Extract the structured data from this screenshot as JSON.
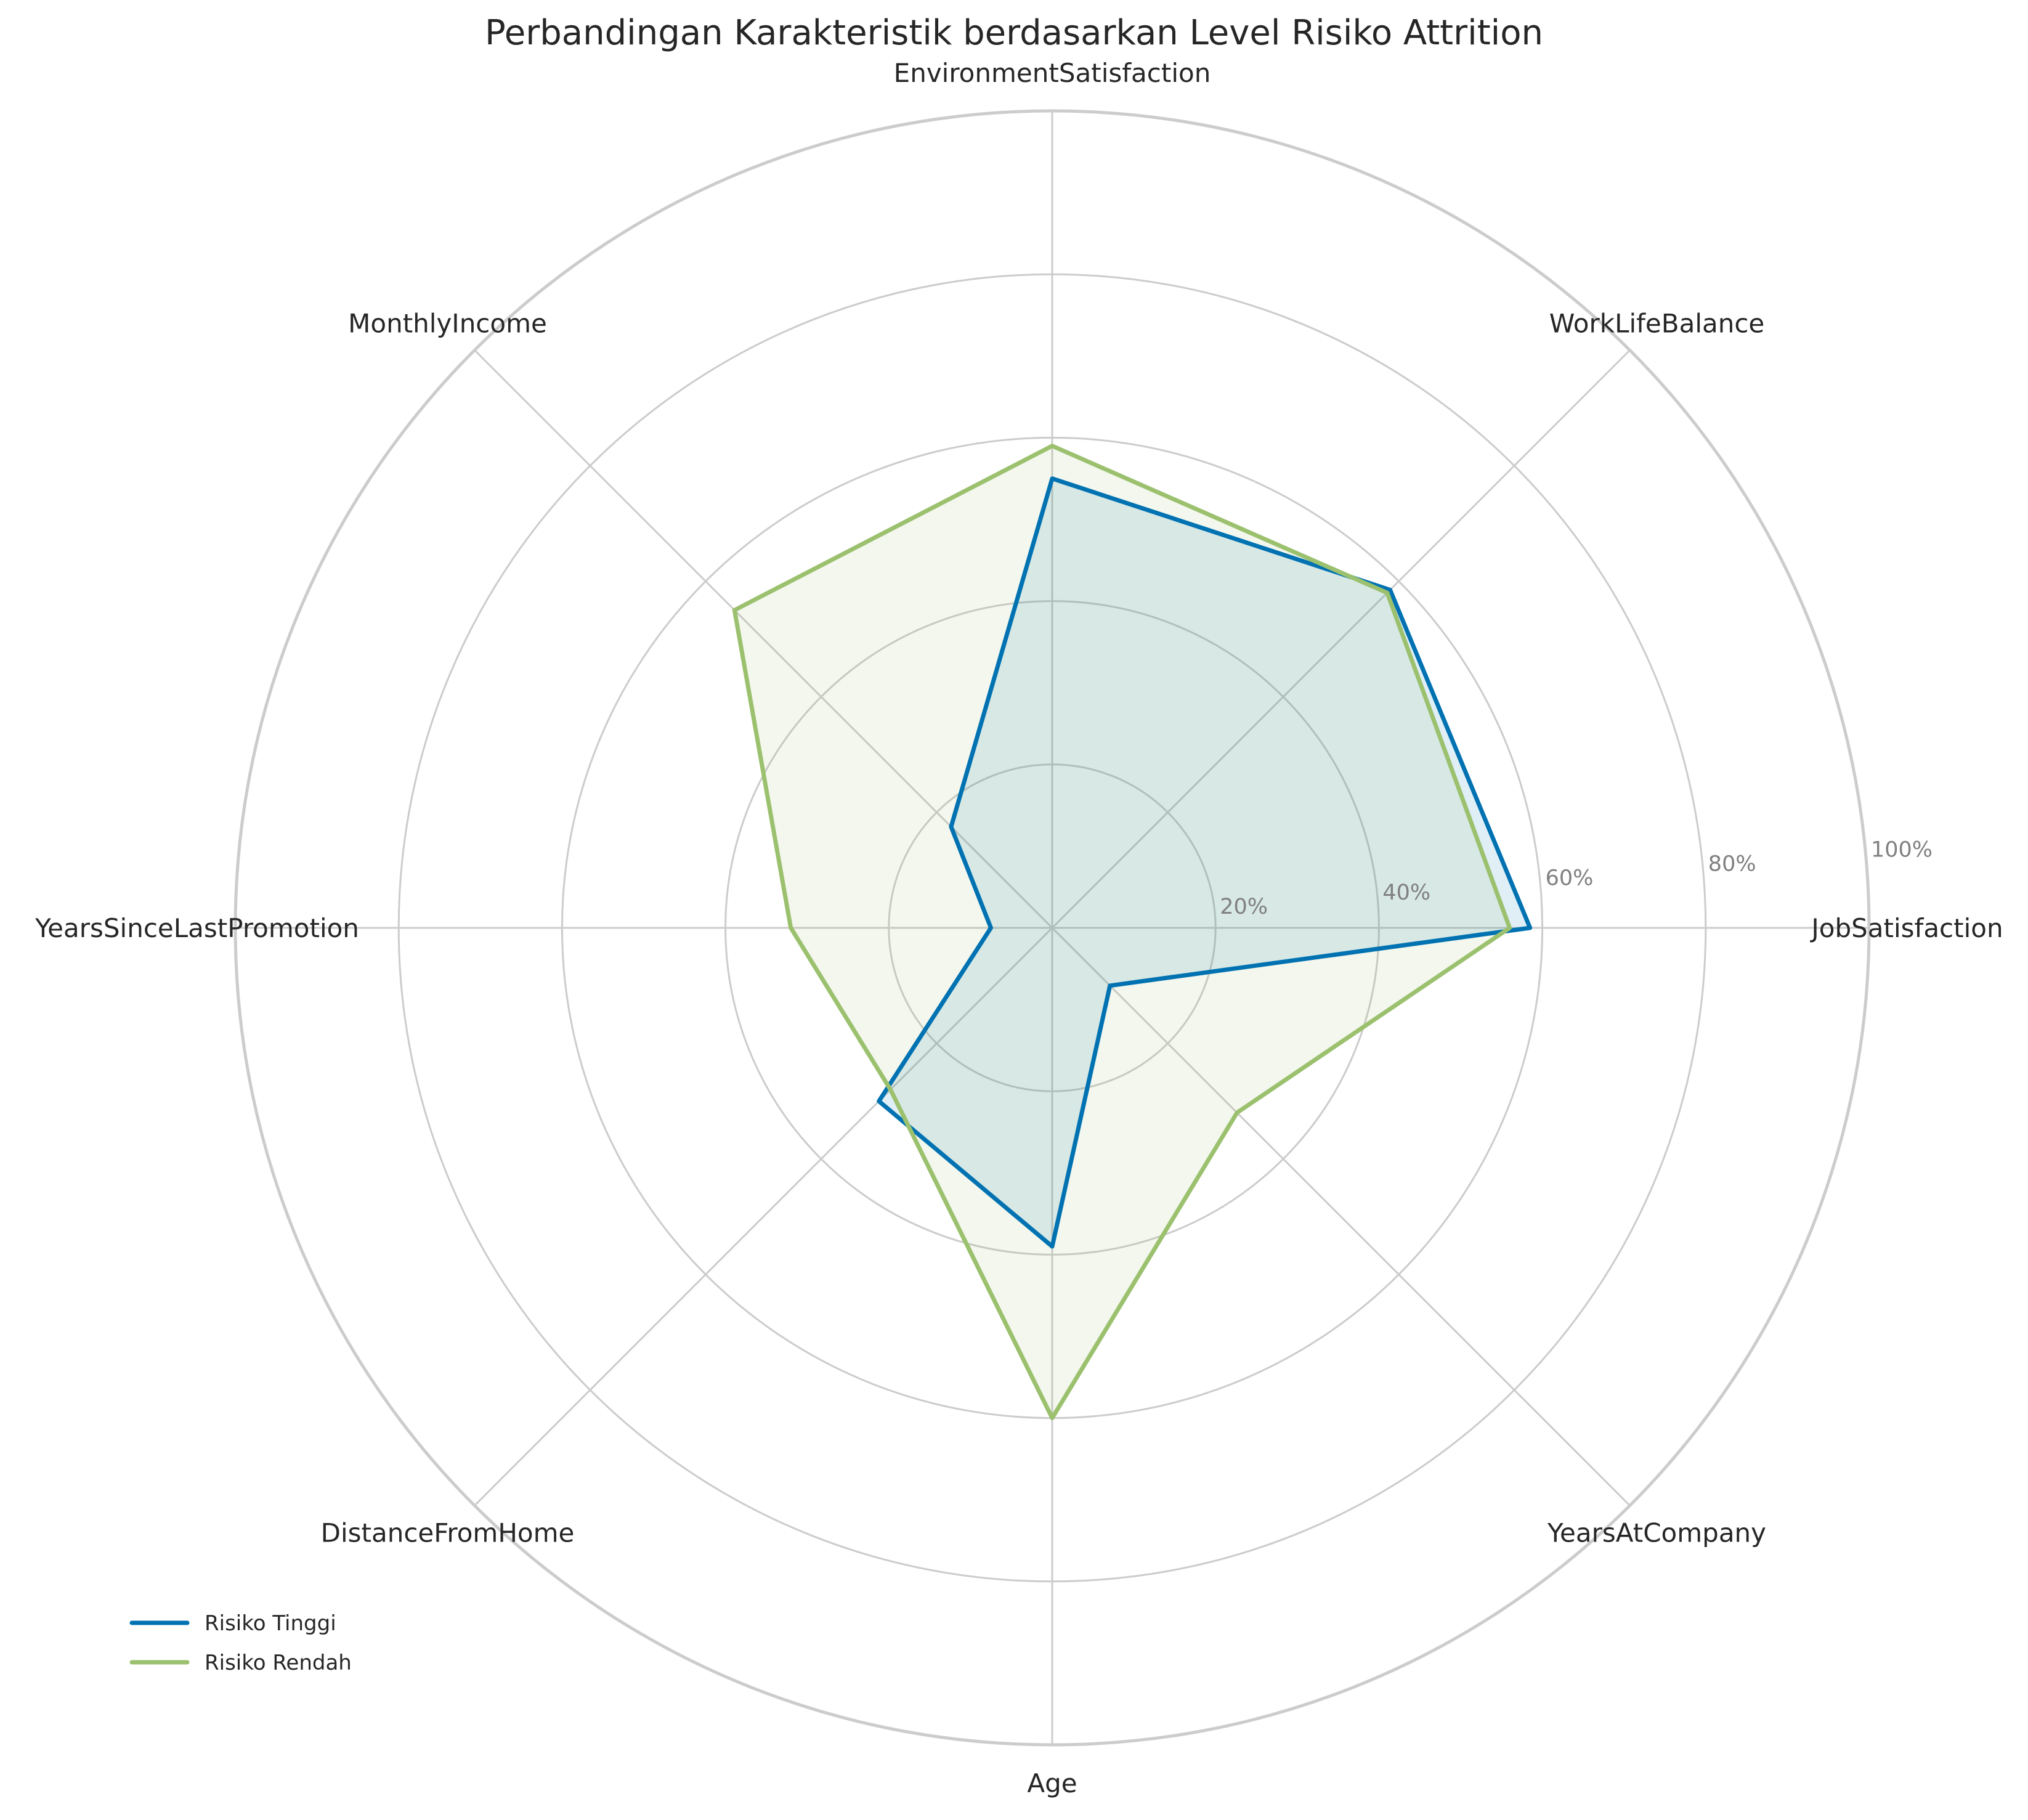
{
  "chart_data": {
    "type": "radar",
    "title": "Perbandingan Karakteristik berdasarkan Level Risiko Attrition",
    "categories": [
      "JobSatisfaction",
      "WorkLifeBalance",
      "EnvironmentSatisfaction",
      "MonthlyIncome",
      "YearsSinceLastPromotion",
      "DistanceFromHome",
      "Age",
      "YearsAtCompany"
    ],
    "rlim": [
      0,
      100
    ],
    "rticks": [
      20,
      40,
      60,
      80,
      100
    ],
    "rtick_labels": [
      "20%",
      "40%",
      "60%",
      "80%",
      "100%"
    ],
    "grid": true,
    "legend_position": "bottom-left",
    "series": [
      {
        "name": "Risiko Tinggi",
        "color": "#0072b2",
        "fill_opacity": 0.12,
        "values": [
          58.5,
          58.5,
          55.0,
          17.5,
          7.5,
          30.0,
          39.0,
          10.0
        ]
      },
      {
        "name": "Risiko Rendah",
        "color": "#9bc16e",
        "fill_opacity": 0.12,
        "values": [
          56.0,
          58.0,
          59.0,
          55.0,
          32.0,
          28.0,
          60.0,
          32.0
        ]
      }
    ]
  }
}
